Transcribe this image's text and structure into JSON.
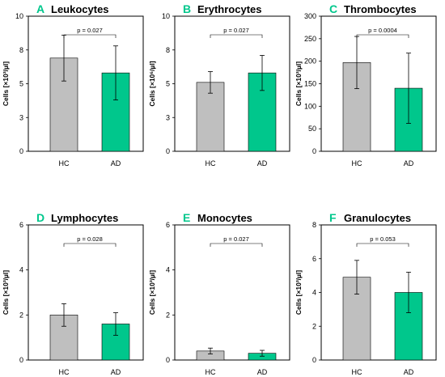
{
  "colors": {
    "hc_bar": "#bfbfbf",
    "ad_bar": "#00c78c",
    "panel_letter": "#00c78c",
    "axis": "#000000"
  },
  "chart_data": [
    {
      "type": "bar",
      "panel_letter": "A",
      "title": "Leukocytes",
      "ylabel": "Cells [×10³/µl]",
      "categories": [
        "HC",
        "AD"
      ],
      "values": [
        6.9,
        5.8
      ],
      "errors": [
        1.7,
        2.0
      ],
      "ylim": [
        0,
        10
      ],
      "yticks": [
        0,
        3,
        5,
        8,
        10
      ],
      "ytick_positions": [
        0,
        2.5,
        5,
        7.5,
        10
      ],
      "annotation": "p = 0.027"
    },
    {
      "type": "bar",
      "panel_letter": "B",
      "title": "Erythrocytes",
      "ylabel": "Cells [×10⁶/µl]",
      "categories": [
        "HC",
        "AD"
      ],
      "values": [
        5.1,
        5.8
      ],
      "errors": [
        0.8,
        1.3
      ],
      "ylim": [
        0,
        10
      ],
      "yticks": [
        0,
        3,
        5,
        8,
        10
      ],
      "ytick_positions": [
        0,
        2.5,
        5,
        7.5,
        10
      ],
      "annotation": "p = 0.027"
    },
    {
      "type": "bar",
      "panel_letter": "C",
      "title": "Thrombocytes",
      "ylabel": "Cells [×10³/µl]",
      "categories": [
        "HC",
        "AD"
      ],
      "values": [
        197,
        140
      ],
      "errors": [
        58,
        78
      ],
      "ylim": [
        0,
        300
      ],
      "yticks": [
        0,
        50,
        100,
        150,
        200,
        250,
        300
      ],
      "ytick_positions": [
        0,
        50,
        100,
        150,
        200,
        250,
        300
      ],
      "annotation": "p = 0.0004"
    },
    {
      "type": "bar",
      "panel_letter": "D",
      "title": "Lymphocytes",
      "ylabel": "Cells [×10³/µl]",
      "categories": [
        "HC",
        "AD"
      ],
      "values": [
        2.0,
        1.6
      ],
      "errors": [
        0.5,
        0.5
      ],
      "ylim": [
        0,
        6
      ],
      "yticks": [
        0,
        2,
        4,
        6
      ],
      "ytick_positions": [
        0,
        2,
        4,
        6
      ],
      "annotation": "p = 0.028"
    },
    {
      "type": "bar",
      "panel_letter": "E",
      "title": "Monocytes",
      "ylabel": "Cells [×10³/µl]",
      "categories": [
        "HC",
        "AD"
      ],
      "values": [
        0.4,
        0.3
      ],
      "errors": [
        0.13,
        0.13
      ],
      "ylim": [
        0,
        6
      ],
      "yticks": [
        0,
        2,
        4,
        6
      ],
      "ytick_positions": [
        0,
        2,
        4,
        6
      ],
      "annotation": "p = 0.027"
    },
    {
      "type": "bar",
      "panel_letter": "F",
      "title": "Granulocytes",
      "ylabel": "Cells [×10³/µl]",
      "categories": [
        "HC",
        "AD"
      ],
      "values": [
        4.9,
        4.0
      ],
      "errors": [
        1.0,
        1.2
      ],
      "ylim": [
        0,
        8
      ],
      "yticks": [
        0,
        2,
        4,
        6,
        8
      ],
      "ytick_positions": [
        0,
        2,
        4,
        6,
        8
      ],
      "annotation": "p = 0.053"
    }
  ]
}
